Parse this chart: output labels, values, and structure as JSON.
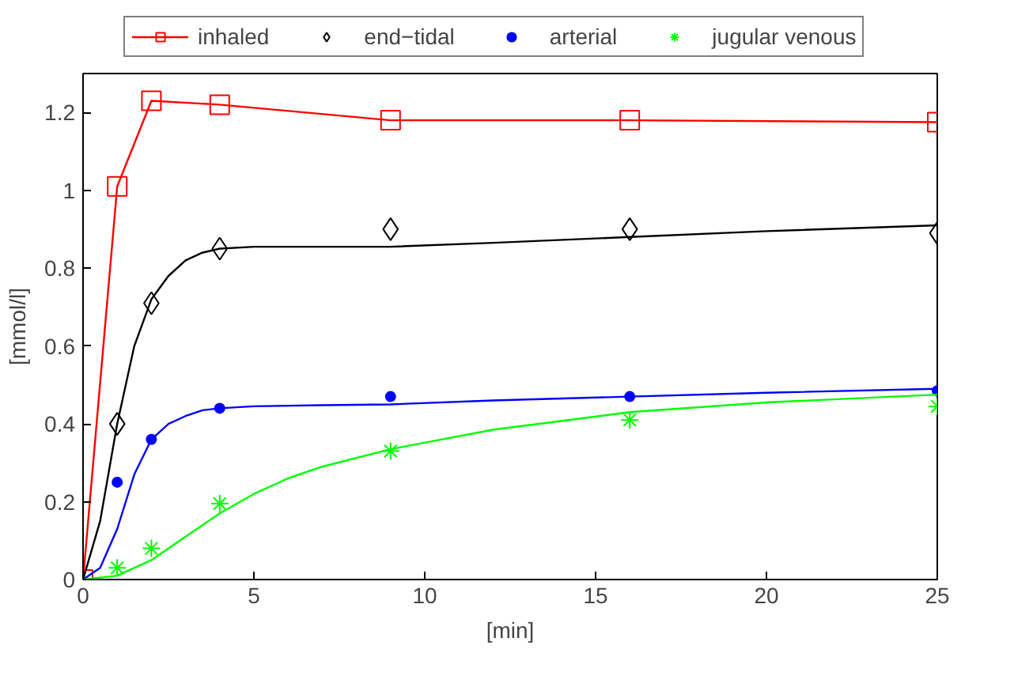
{
  "chart_data": {
    "type": "line",
    "xlabel": "[min]",
    "ylabel": "[mmol/l]",
    "xlim": [
      0,
      25
    ],
    "ylim": [
      0,
      1.3
    ],
    "xticks": [
      0,
      5,
      10,
      15,
      20,
      25
    ],
    "yticks": [
      0,
      0.2,
      0.4,
      0.6,
      0.8,
      1,
      1.2
    ],
    "grid": false,
    "legend": "top",
    "series": [
      {
        "name": "inhaled",
        "marker": "square",
        "color": "#ff0000",
        "x": [
          0,
          1,
          2,
          4,
          9,
          16,
          25
        ],
        "values": [
          0,
          1.01,
          1.23,
          1.22,
          1.18,
          1.18,
          1.175
        ]
      },
      {
        "name": "end−tidal",
        "type": "scatter",
        "marker": "diamond",
        "color": "#000000",
        "x": [
          1,
          2,
          4,
          9,
          16,
          25
        ],
        "values": [
          0.4,
          0.71,
          0.85,
          0.9,
          0.9,
          0.89
        ]
      },
      {
        "name": "arterial",
        "type": "scatter",
        "marker": "circle",
        "color": "#0000ff",
        "x": [
          1,
          2,
          4,
          9,
          16,
          25
        ],
        "values": [
          0.25,
          0.36,
          0.44,
          0.47,
          0.47,
          0.485
        ]
      },
      {
        "name": "jugular venous",
        "type": "scatter",
        "marker": "cross",
        "color": "#00ff00",
        "x": [
          1,
          2,
          4,
          9,
          16,
          25
        ],
        "values": [
          0.03,
          0.08,
          0.195,
          0.33,
          0.41,
          0.445
        ]
      },
      {
        "type": "line",
        "marker": "none",
        "color": "#000000",
        "x": [
          0,
          0.5,
          1,
          1.5,
          2,
          2.5,
          3,
          3.5,
          4,
          5,
          7,
          9,
          12,
          16,
          20,
          25
        ],
        "values": [
          0,
          0.15,
          0.4,
          0.6,
          0.72,
          0.78,
          0.82,
          0.84,
          0.85,
          0.855,
          0.855,
          0.855,
          0.865,
          0.88,
          0.895,
          0.91
        ]
      },
      {
        "type": "line",
        "marker": "none",
        "color": "#0000ff",
        "x": [
          0,
          0.5,
          1,
          1.5,
          2,
          2.5,
          3,
          3.5,
          4,
          5,
          7,
          9,
          12,
          16,
          20,
          25
        ],
        "values": [
          0,
          0.03,
          0.13,
          0.27,
          0.36,
          0.4,
          0.42,
          0.435,
          0.44,
          0.445,
          0.448,
          0.45,
          0.46,
          0.47,
          0.48,
          0.49
        ]
      },
      {
        "type": "line",
        "marker": "none",
        "color": "#00ff00",
        "x": [
          0,
          1,
          2,
          3,
          4,
          5,
          6,
          7,
          9,
          12,
          16,
          20,
          25
        ],
        "values": [
          0,
          0.01,
          0.05,
          0.11,
          0.17,
          0.22,
          0.26,
          0.29,
          0.335,
          0.385,
          0.43,
          0.455,
          0.475
        ]
      }
    ]
  }
}
